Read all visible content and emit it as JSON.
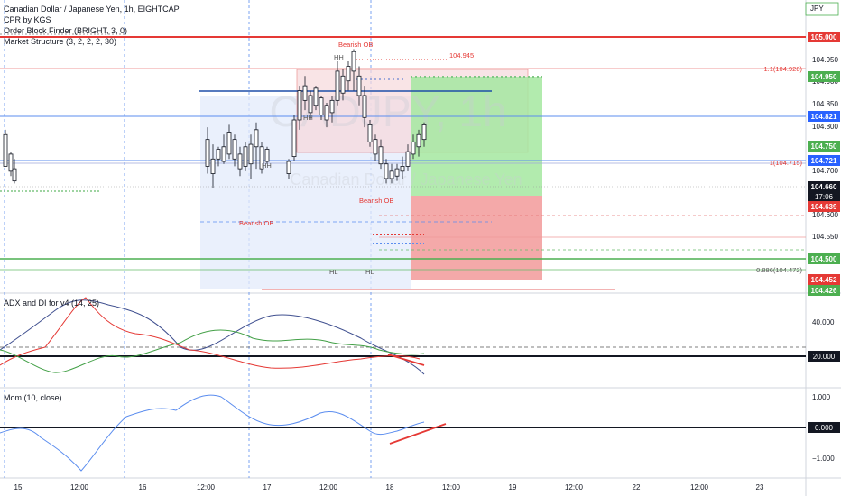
{
  "header": {
    "symbol_line": "Canadian Dollar / Japanese Yen, 1h, EIGHTCAP",
    "indicators": [
      "CPR by KGS",
      "Order Block Finder (BRIGHT, 3, 0)",
      "Market Structure (3, 2, 2, 2, 30)"
    ],
    "currency": "JPY",
    "countdown": "17:06"
  },
  "watermark": {
    "symbol": "CADJPY, 1h",
    "name": "Canadian Dollar / Japanese Yen"
  },
  "price_axis": {
    "ticks": [
      "104.950",
      "104.900",
      "104.850",
      "104.800",
      "104.750",
      "104.700",
      "104.650",
      "104.600",
      "104.550",
      "104.500"
    ],
    "labels": [
      {
        "text": "105.000",
        "color": "#e53935"
      },
      {
        "text": "104.950",
        "color": "#4caf50"
      },
      {
        "text": "104.821",
        "color": "#2962ff"
      },
      {
        "text": "104.750",
        "color": "#4caf50"
      },
      {
        "text": "104.721",
        "color": "#2962ff"
      },
      {
        "text": "104.660",
        "color": "#131722"
      },
      {
        "text": "104.639",
        "color": "#e53935"
      },
      {
        "text": "104.500",
        "color": "#4caf50"
      },
      {
        "text": "104.452",
        "color": "#e53935"
      },
      {
        "text": "104.426",
        "color": "#4caf50"
      }
    ]
  },
  "annotations": {
    "fib_1_1": "1.1(104.928)",
    "fib_1": "1(104.715)",
    "fib_0886": "0.886(104.472)",
    "level_945": "104.945",
    "bearish_ob_top": "Bearish OB",
    "bearish_ob_left": "Bearish OB",
    "bearish_ob_mid": "Bearish OB",
    "hh": "HH",
    "hl": "HL"
  },
  "adx_pane": {
    "title": "ADX and DI for v4 (14, 25)",
    "ticks": [
      "40.000",
      "20.000"
    ]
  },
  "mom_pane": {
    "title": "Mom (10, close)",
    "ticks": [
      "1.000",
      "0.000",
      "−1.000"
    ]
  },
  "time_axis": {
    "labels": [
      "15",
      "12:00",
      "16",
      "12:00",
      "17",
      "12:00",
      "18",
      "12:00",
      "19",
      "12:00",
      "22",
      "12:00",
      "23"
    ]
  },
  "colors": {
    "up": "#131722",
    "down": "#131722",
    "red": "#e53935",
    "green": "#4caf50",
    "blue": "#2962ff"
  }
}
